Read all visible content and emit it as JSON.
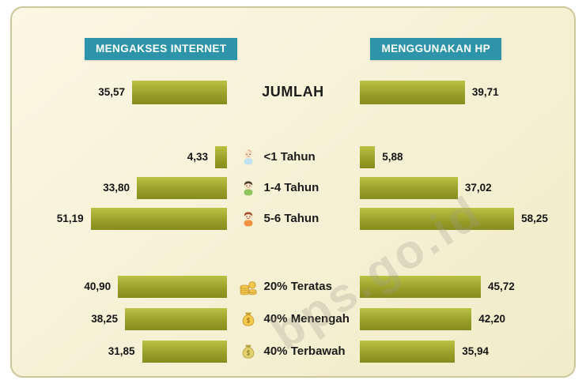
{
  "headers": {
    "left": "MENGAKSES INTERNET",
    "right": "MENGGUNAKAN HP"
  },
  "watermark": "bps.go.id",
  "chart_data": {
    "type": "bar",
    "subtype": "butterfly",
    "categories": [
      "JUMLAH",
      "<1 Tahun",
      "1-4 Tahun",
      "5-6 Tahun",
      "20% Teratas",
      "40% Menengah",
      "40% Terbawah"
    ],
    "series": [
      {
        "name": "MENGAKSES INTERNET",
        "values": [
          35.57,
          4.33,
          33.8,
          51.19,
          40.9,
          38.25,
          31.85
        ]
      },
      {
        "name": "MENGGUNAKAN HP",
        "values": [
          39.71,
          5.88,
          37.02,
          58.25,
          45.72,
          42.2,
          35.94
        ]
      }
    ],
    "value_format": "comma-decimal",
    "xmax": 60,
    "bar_color_top": "#bcc244",
    "bar_color_bottom": "#878b1c",
    "header_color": "#2e94aa",
    "background_color": "#f5f0d2",
    "legend_position": "top",
    "grid": false
  },
  "rows": [
    {
      "category": "JUMLAH",
      "left_label": "35,57",
      "right_label": "39,71",
      "left_val": 35.57,
      "right_val": 39.71
    },
    {
      "category": "<1 Tahun",
      "left_label": "4,33",
      "right_label": "5,88",
      "left_val": 4.33,
      "right_val": 5.88
    },
    {
      "category": "1-4 Tahun",
      "left_label": "33,80",
      "right_label": "37,02",
      "left_val": 33.8,
      "right_val": 37.02
    },
    {
      "category": "5-6 Tahun",
      "left_label": "51,19",
      "right_label": "58,25",
      "left_val": 51.19,
      "right_val": 58.25
    },
    {
      "category": "20% Teratas",
      "left_label": "40,90",
      "right_label": "45,72",
      "left_val": 40.9,
      "right_val": 45.72
    },
    {
      "category": "40% Menengah",
      "left_label": "38,25",
      "right_label": "42,20",
      "left_val": 38.25,
      "right_val": 42.2
    },
    {
      "category": "40% Terbawah",
      "left_label": "31,85",
      "right_label": "35,94",
      "left_val": 31.85,
      "right_val": 35.94
    }
  ]
}
